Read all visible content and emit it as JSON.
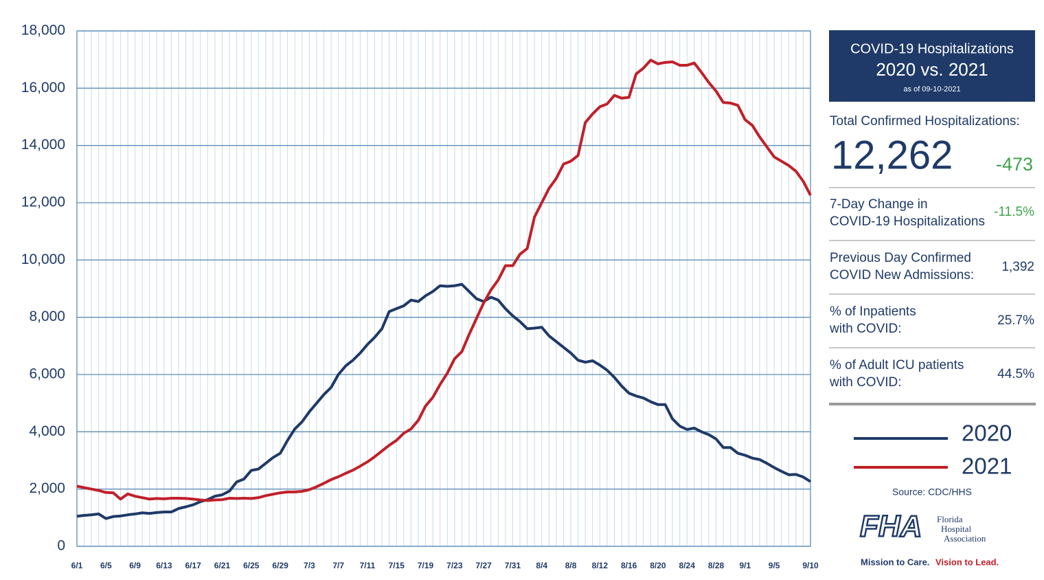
{
  "chart_data": {
    "type": "line",
    "categories": [
      "6/1",
      null,
      null,
      null,
      "6/5",
      null,
      null,
      null,
      "6/9",
      null,
      null,
      null,
      "6/13",
      null,
      null,
      null,
      "6/17",
      null,
      null,
      null,
      "6/21",
      null,
      null,
      null,
      "6/25",
      null,
      null,
      null,
      "6/29",
      null,
      null,
      null,
      "7/3",
      null,
      null,
      null,
      "7/7",
      null,
      null,
      null,
      "7/11",
      null,
      null,
      null,
      "7/15",
      null,
      null,
      null,
      "7/19",
      null,
      null,
      null,
      "7/23",
      null,
      null,
      null,
      "7/27",
      null,
      null,
      null,
      "7/31",
      null,
      null,
      null,
      "8/4",
      null,
      null,
      null,
      "8/8",
      null,
      null,
      null,
      "8/12",
      null,
      null,
      null,
      "8/16",
      null,
      null,
      null,
      "8/20",
      null,
      null,
      null,
      "8/24",
      null,
      null,
      null,
      "8/28",
      null,
      null,
      null,
      "9/1",
      null,
      null,
      null,
      "9/5",
      null,
      null,
      null,
      null,
      "9/10"
    ],
    "series": [
      {
        "name": "2020",
        "color": "#1f3a68",
        "values": [
          1050,
          1080,
          1100,
          1130,
          970,
          1040,
          1060,
          1100,
          1130,
          1170,
          1150,
          1180,
          1200,
          1200,
          1320,
          1380,
          1450,
          1560,
          1630,
          1750,
          1800,
          1930,
          2250,
          2350,
          2650,
          2700,
          2900,
          3100,
          3250,
          3700,
          4100,
          4350,
          4700,
          5000,
          5300,
          5550,
          6000,
          6300,
          6500,
          6750,
          7050,
          7300,
          7600,
          8200,
          8300,
          8400,
          8600,
          8550,
          8750,
          8900,
          9100,
          9080,
          9100,
          9150,
          8900,
          8650,
          8550,
          8700,
          8600,
          8300,
          8050,
          7850,
          7600,
          7620,
          7650,
          7350,
          7150,
          6950,
          6750,
          6500,
          6430,
          6480,
          6330,
          6150,
          5900,
          5600,
          5350,
          5250,
          5180,
          5050,
          4950,
          4950,
          4450,
          4200,
          4080,
          4130,
          4000,
          3900,
          3750,
          3450,
          3450,
          3250,
          3180,
          3080,
          3030,
          2900,
          2750,
          2620,
          2500,
          2510,
          2420,
          2260
        ]
      },
      {
        "name": "2021",
        "color": "#c0202a",
        "values": [
          2100,
          2050,
          2000,
          1950,
          1880,
          1870,
          1650,
          1830,
          1750,
          1700,
          1650,
          1670,
          1660,
          1680,
          1680,
          1670,
          1650,
          1620,
          1600,
          1620,
          1630,
          1680,
          1670,
          1680,
          1670,
          1700,
          1770,
          1820,
          1870,
          1900,
          1900,
          1920,
          1980,
          2080,
          2200,
          2330,
          2430,
          2550,
          2660,
          2800,
          2950,
          3130,
          3330,
          3530,
          3700,
          3950,
          4100,
          4400,
          4900,
          5200,
          5650,
          6050,
          6550,
          6800,
          7400,
          7950,
          8500,
          8950,
          9300,
          9800,
          9800,
          10200,
          10400,
          11500,
          12000,
          12500,
          12850,
          13350,
          13450,
          13650,
          14800,
          15100,
          15350,
          15450,
          15750,
          15650,
          15680,
          16500,
          16700,
          16980,
          16850,
          16900,
          16920,
          16800,
          16800,
          16880,
          16550,
          16200,
          15900,
          15500,
          15480,
          15400,
          14900,
          14700,
          14300,
          13950,
          13600,
          13450,
          13300,
          13100,
          12750,
          12262
        ]
      }
    ],
    "ylim": [
      0,
      18000
    ],
    "yticks": [
      0,
      {
        "value": 2000,
        "label": "2,000"
      },
      {
        "value": 4000,
        "label": "4,000"
      },
      {
        "value": 6000,
        "label": "6,000"
      },
      {
        "value": 8000,
        "label": "8,000"
      },
      {
        "value": 10000,
        "label": "10,000"
      },
      {
        "value": 12000,
        "label": "12,000"
      },
      {
        "value": 14000,
        "label": "14,000"
      },
      {
        "value": 16000,
        "label": "16,000"
      },
      {
        "value": 18000,
        "label": "18,000"
      }
    ],
    "grid": true
  },
  "panel": {
    "header": {
      "title": "COVID-19 Hospitalizations",
      "subtitle": "2020 vs. 2021",
      "as_of": "as of 09-10-2021"
    },
    "total": {
      "label": "Total Confirmed Hospitalizations:",
      "value": "12,262",
      "change": "-473"
    },
    "stats": [
      {
        "label_lines": [
          "7-Day Change in",
          "COVID-19 Hospitalizations"
        ],
        "value": "-11.5%"
      },
      {
        "label_lines": [
          "Previous Day Confirmed",
          "COVID New Admissions:"
        ],
        "value": "1,392"
      },
      {
        "label_lines": [
          "% of Inpatients",
          "with COVID:"
        ],
        "value": "25.7%"
      },
      {
        "label_lines": [
          "% of Adult ICU patients",
          "with COVID:"
        ],
        "value": "44.5%"
      }
    ],
    "source": "Source: CDC/HHS",
    "logo": {
      "mark": "FHA",
      "name_lines": [
        "Florida",
        "Hospital",
        "Association"
      ],
      "tagline_a": "Mission to Care.",
      "tagline_b": "Vision to Lead."
    }
  }
}
